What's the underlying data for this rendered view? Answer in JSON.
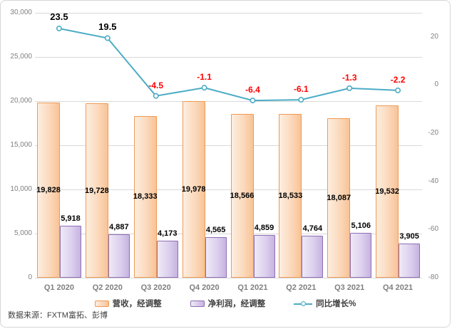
{
  "source_note": "数据来源：FXTM富拓、彭博",
  "chart_data": {
    "type": "combo",
    "categories": [
      "Q1 2020",
      "Q2 2020",
      "Q3 2020",
      "Q4 2020",
      "Q1 2021",
      "Q2 2021",
      "Q3 2021",
      "Q4 2021"
    ],
    "series": [
      {
        "name": "营收，经调整",
        "type": "bar",
        "axis": "left",
        "values": [
          19828,
          19728,
          18333,
          19978,
          18566,
          18533,
          18087,
          19532
        ],
        "value_labels": [
          "19,828",
          "19,728",
          "18,333",
          "19,978",
          "18,566",
          "18,533",
          "18,087",
          "19,532"
        ]
      },
      {
        "name": "净利润，经调整",
        "type": "bar",
        "axis": "left",
        "values": [
          5918,
          4887,
          4173,
          4565,
          4859,
          4764,
          5106,
          3905
        ],
        "value_labels": [
          "5,918",
          "4,887",
          "4,173",
          "4,565",
          "4,859",
          "4,764",
          "5,106",
          "3,905"
        ]
      },
      {
        "name": "同比增长%",
        "type": "line",
        "axis": "right",
        "values": [
          23.5,
          19.5,
          -4.5,
          -1.1,
          -6.4,
          -6.1,
          -1.3,
          -2.2
        ],
        "value_labels": [
          "23.5",
          "19.5",
          "-4.5",
          "-1.1",
          "-6.4",
          "-6.1",
          "-1.3",
          "-2.2"
        ]
      }
    ],
    "left_axis": {
      "min": 0,
      "max": 30000,
      "step": 5000,
      "tick_labels": [
        "0",
        "5,000",
        "10,000",
        "15,000",
        "20,000",
        "25,000",
        "30,000"
      ]
    },
    "right_axis": {
      "min": -80,
      "plot_max": 30,
      "tick_step": 20,
      "tick_labels": [
        "20",
        "0",
        "-20",
        "-40",
        "-60",
        "-80"
      ],
      "tick_values": [
        20,
        0,
        -20,
        -40,
        -60,
        -80
      ]
    },
    "grid": true,
    "legend_position": "bottom",
    "colors": {
      "bar1_border": "#ee9a55",
      "bar1_fill_light": "#fdeee0",
      "bar1_fill_dark": "#f8c396",
      "bar2_border": "#8e6fb4",
      "bar2_fill_light": "#efeaf6",
      "bar2_fill_dark": "#c6b3e0",
      "line": "#4bacc6",
      "marker_fill": "#ffffff",
      "label_positive": "#000000",
      "label_negative": "#ff0000",
      "gridline": "#d9d9d9",
      "axis_text": "#808080"
    }
  }
}
